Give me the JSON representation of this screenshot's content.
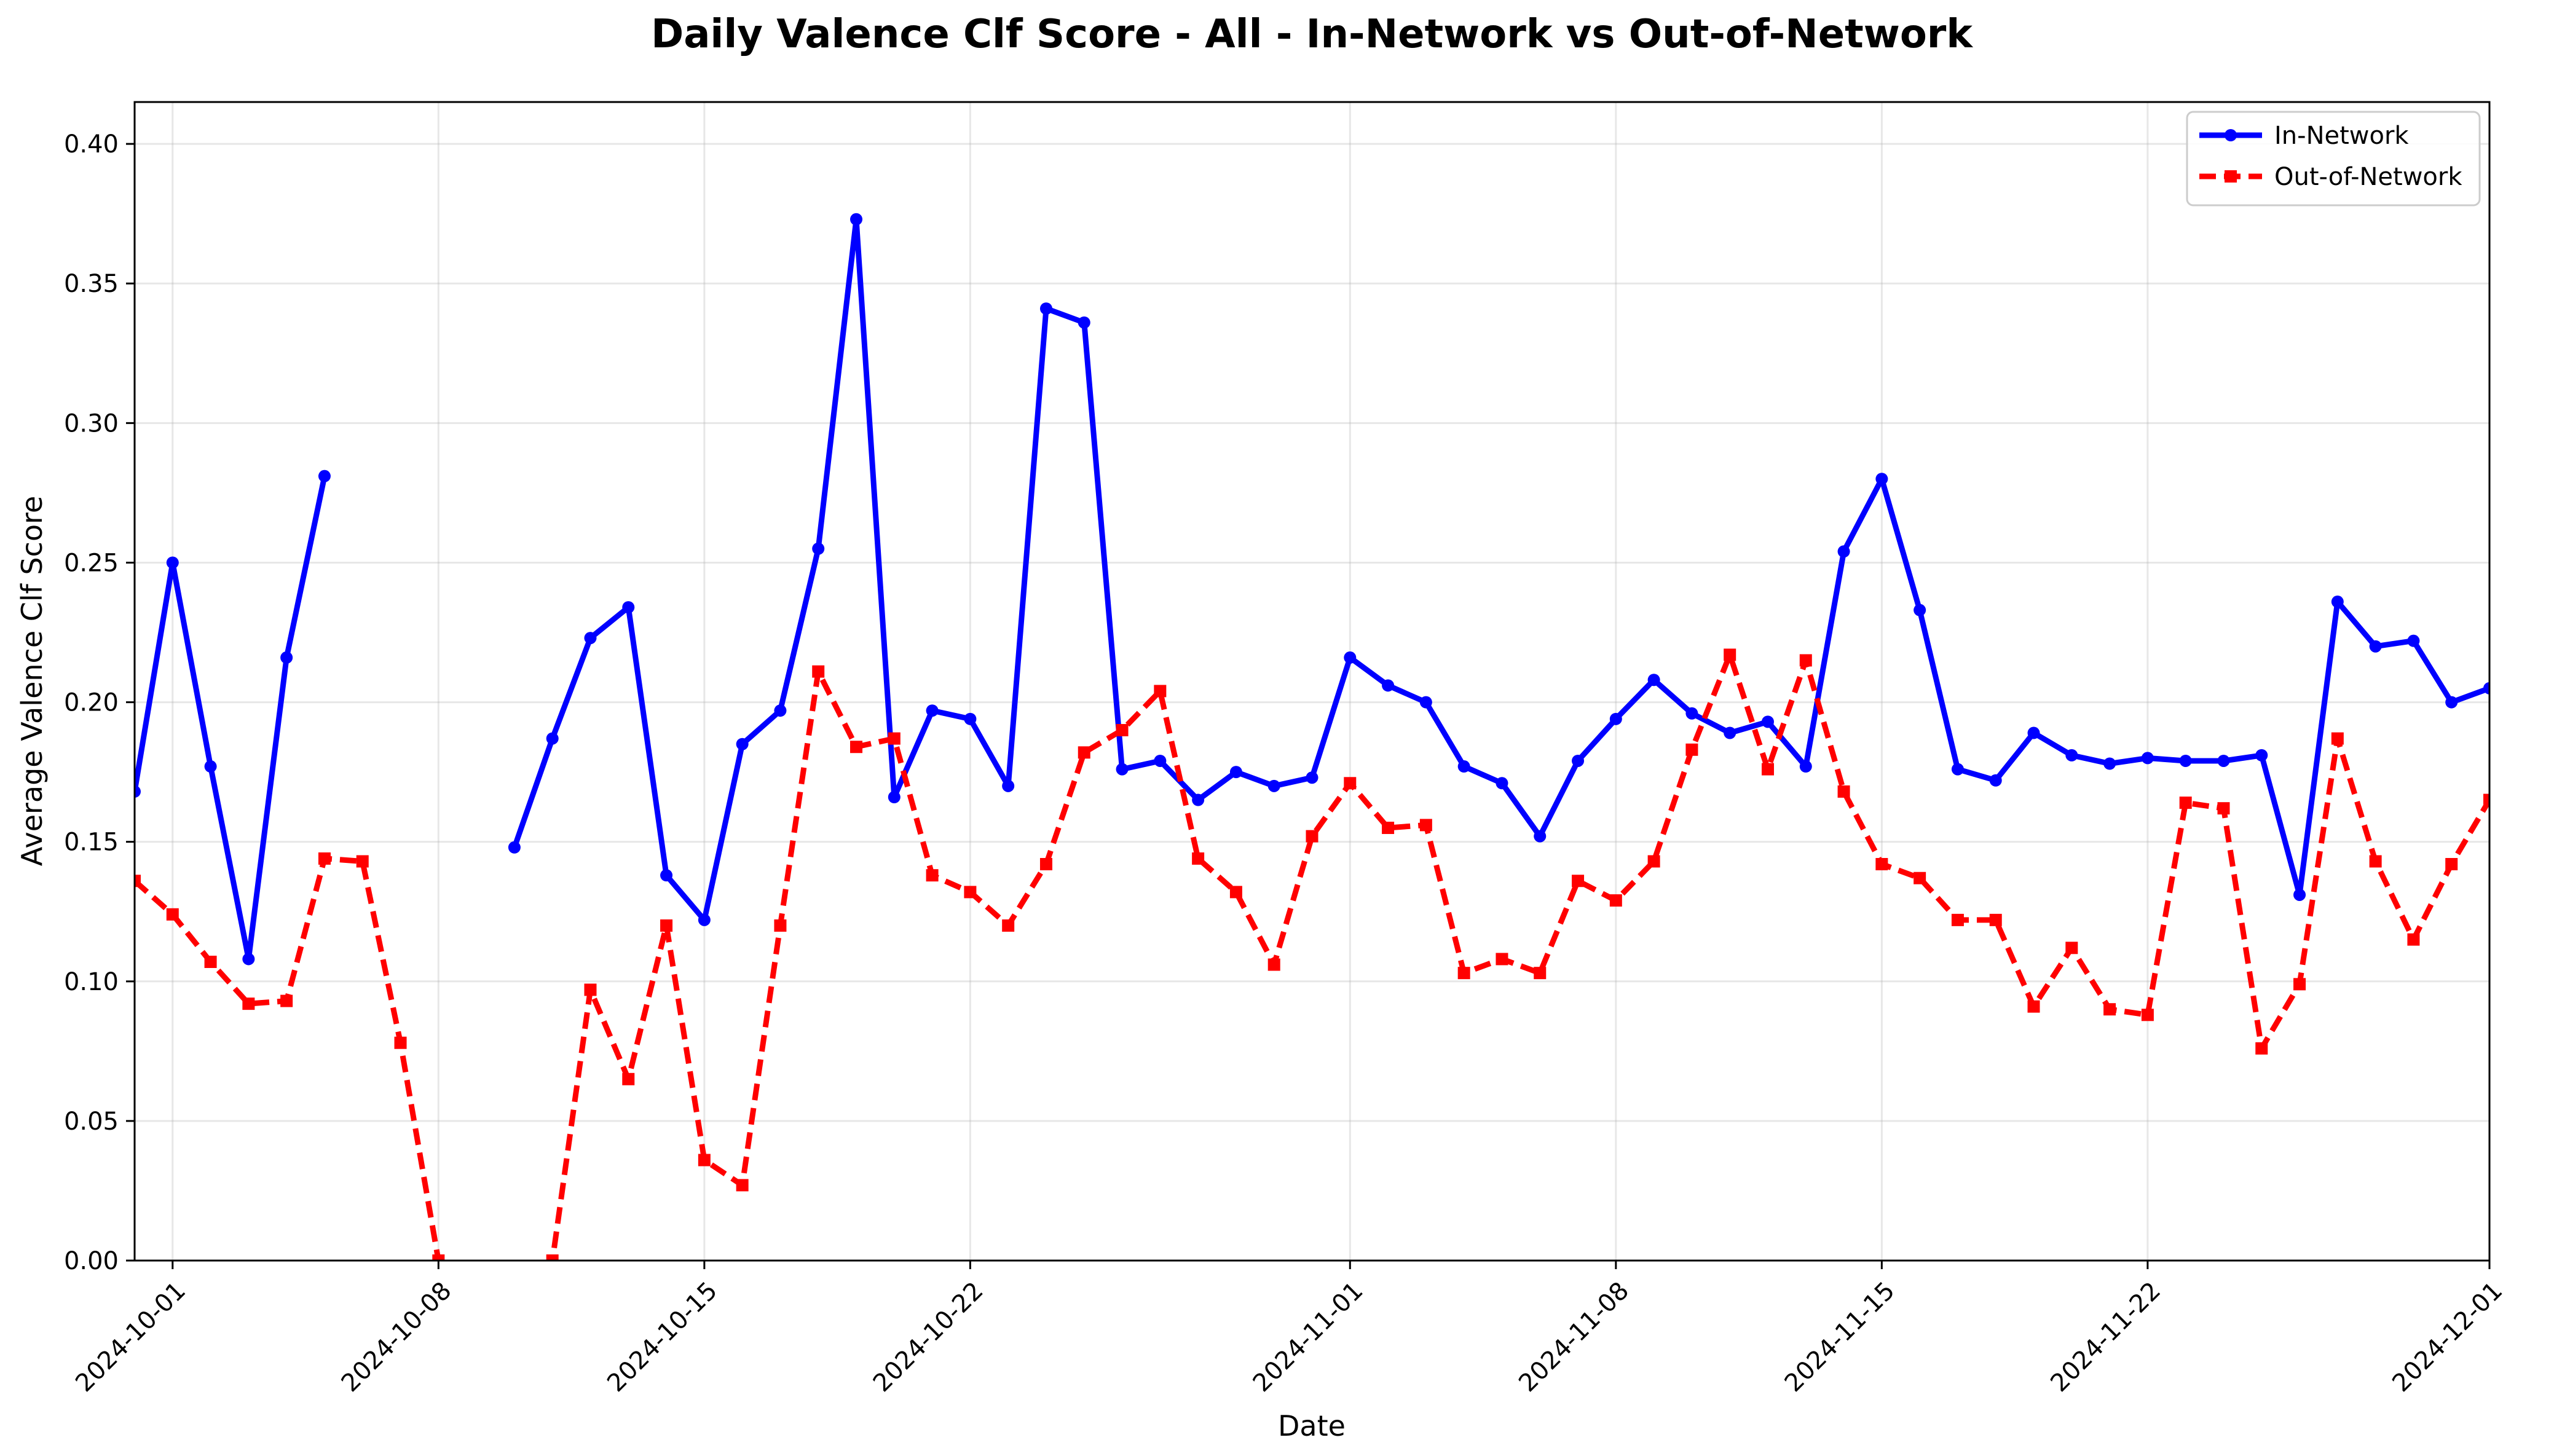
{
  "chart_data": {
    "type": "line",
    "title": "Daily Valence Clf Score - All - In-Network vs Out-of-Network",
    "xlabel": "Date",
    "ylabel": "Average Valence Clf Score",
    "xlim": [
      "2024-09-30",
      "2024-12-01"
    ],
    "ylim": [
      0,
      0.415
    ],
    "x_ticks": [
      "2024-10-01",
      "2024-10-08",
      "2024-10-15",
      "2024-10-22",
      "2024-11-01",
      "2024-11-08",
      "2024-11-15",
      "2024-11-22",
      "2024-12-01"
    ],
    "y_ticks": [
      "0.00",
      "0.05",
      "0.10",
      "0.15",
      "0.20",
      "0.25",
      "0.30",
      "0.35",
      "0.40"
    ],
    "grid": true,
    "legend_position": "top-right",
    "series": [
      {
        "name": "In-Network",
        "color": "#0000ff",
        "line_style": "solid",
        "marker": "circle",
        "points": [
          [
            "2024-09-30",
            0.168
          ],
          [
            "2024-10-01",
            0.25
          ],
          [
            "2024-10-02",
            0.177
          ],
          [
            "2024-10-03",
            0.108
          ],
          [
            "2024-10-04",
            0.216
          ],
          [
            "2024-10-05",
            0.281
          ],
          [
            "2024-10-10",
            0.148
          ],
          [
            "2024-10-11",
            0.187
          ],
          [
            "2024-10-12",
            0.223
          ],
          [
            "2024-10-13",
            0.234
          ],
          [
            "2024-10-14",
            0.138
          ],
          [
            "2024-10-15",
            0.122
          ],
          [
            "2024-10-16",
            0.185
          ],
          [
            "2024-10-17",
            0.197
          ],
          [
            "2024-10-18",
            0.255
          ],
          [
            "2024-10-19",
            0.373
          ],
          [
            "2024-10-20",
            0.166
          ],
          [
            "2024-10-21",
            0.197
          ],
          [
            "2024-10-22",
            0.194
          ],
          [
            "2024-10-23",
            0.17
          ],
          [
            "2024-10-24",
            0.341
          ],
          [
            "2024-10-25",
            0.336
          ],
          [
            "2024-10-26",
            0.176
          ],
          [
            "2024-10-27",
            0.179
          ],
          [
            "2024-10-28",
            0.165
          ],
          [
            "2024-10-29",
            0.175
          ],
          [
            "2024-10-30",
            0.17
          ],
          [
            "2024-10-31",
            0.173
          ],
          [
            "2024-11-01",
            0.216
          ],
          [
            "2024-11-02",
            0.206
          ],
          [
            "2024-11-03",
            0.2
          ],
          [
            "2024-11-04",
            0.177
          ],
          [
            "2024-11-05",
            0.171
          ],
          [
            "2024-11-06",
            0.152
          ],
          [
            "2024-11-07",
            0.179
          ],
          [
            "2024-11-08",
            0.194
          ],
          [
            "2024-11-09",
            0.208
          ],
          [
            "2024-11-10",
            0.196
          ],
          [
            "2024-11-11",
            0.189
          ],
          [
            "2024-11-12",
            0.193
          ],
          [
            "2024-11-13",
            0.177
          ],
          [
            "2024-11-14",
            0.254
          ],
          [
            "2024-11-15",
            0.28
          ],
          [
            "2024-11-16",
            0.233
          ],
          [
            "2024-11-17",
            0.176
          ],
          [
            "2024-11-18",
            0.172
          ],
          [
            "2024-11-19",
            0.189
          ],
          [
            "2024-11-20",
            0.181
          ],
          [
            "2024-11-21",
            0.178
          ],
          [
            "2024-11-22",
            0.18
          ],
          [
            "2024-11-23",
            0.179
          ],
          [
            "2024-11-24",
            0.179
          ],
          [
            "2024-11-25",
            0.181
          ],
          [
            "2024-11-26",
            0.131
          ],
          [
            "2024-11-27",
            0.236
          ],
          [
            "2024-11-28",
            0.22
          ],
          [
            "2024-11-29",
            0.222
          ],
          [
            "2024-11-30",
            0.2
          ],
          [
            "2024-12-01",
            0.205
          ]
        ]
      },
      {
        "name": "Out-of-Network",
        "color": "#ff0000",
        "line_style": "dashed",
        "marker": "square",
        "points": [
          [
            "2024-09-30",
            0.136
          ],
          [
            "2024-10-01",
            0.124
          ],
          [
            "2024-10-02",
            0.107
          ],
          [
            "2024-10-03",
            0.092
          ],
          [
            "2024-10-04",
            0.093
          ],
          [
            "2024-10-05",
            0.144
          ],
          [
            "2024-10-06",
            0.143
          ],
          [
            "2024-10-07",
            0.078
          ],
          [
            "2024-10-08",
            0.0
          ],
          [
            "2024-10-09",
            -0.03
          ],
          [
            "2024-10-10",
            -0.03
          ],
          [
            "2024-10-11",
            0.0
          ],
          [
            "2024-10-12",
            0.097
          ],
          [
            "2024-10-13",
            0.065
          ],
          [
            "2024-10-14",
            0.12
          ],
          [
            "2024-10-15",
            0.036
          ],
          [
            "2024-10-16",
            0.027
          ],
          [
            "2024-10-17",
            0.12
          ],
          [
            "2024-10-18",
            0.211
          ],
          [
            "2024-10-19",
            0.184
          ],
          [
            "2024-10-20",
            0.187
          ],
          [
            "2024-10-21",
            0.138
          ],
          [
            "2024-10-22",
            0.132
          ],
          [
            "2024-10-23",
            0.12
          ],
          [
            "2024-10-24",
            0.142
          ],
          [
            "2024-10-25",
            0.182
          ],
          [
            "2024-10-26",
            0.19
          ],
          [
            "2024-10-27",
            0.204
          ],
          [
            "2024-10-28",
            0.144
          ],
          [
            "2024-10-29",
            0.132
          ],
          [
            "2024-10-30",
            0.106
          ],
          [
            "2024-10-31",
            0.152
          ],
          [
            "2024-11-01",
            0.171
          ],
          [
            "2024-11-02",
            0.155
          ],
          [
            "2024-11-03",
            0.156
          ],
          [
            "2024-11-04",
            0.103
          ],
          [
            "2024-11-05",
            0.108
          ],
          [
            "2024-11-06",
            0.103
          ],
          [
            "2024-11-07",
            0.136
          ],
          [
            "2024-11-08",
            0.129
          ],
          [
            "2024-11-09",
            0.143
          ],
          [
            "2024-11-10",
            0.183
          ],
          [
            "2024-11-11",
            0.217
          ],
          [
            "2024-11-12",
            0.176
          ],
          [
            "2024-11-13",
            0.215
          ],
          [
            "2024-11-14",
            0.168
          ],
          [
            "2024-11-15",
            0.142
          ],
          [
            "2024-11-16",
            0.137
          ],
          [
            "2024-11-17",
            0.122
          ],
          [
            "2024-11-18",
            0.122
          ],
          [
            "2024-11-19",
            0.091
          ],
          [
            "2024-11-20",
            0.112
          ],
          [
            "2024-11-21",
            0.09
          ],
          [
            "2024-11-22",
            0.088
          ],
          [
            "2024-11-23",
            0.164
          ],
          [
            "2024-11-24",
            0.162
          ],
          [
            "2024-11-25",
            0.076
          ],
          [
            "2024-11-26",
            0.099
          ],
          [
            "2024-11-27",
            0.187
          ],
          [
            "2024-11-28",
            0.143
          ],
          [
            "2024-11-29",
            0.115
          ],
          [
            "2024-11-30",
            0.142
          ],
          [
            "2024-12-01",
            0.165
          ]
        ]
      }
    ]
  }
}
